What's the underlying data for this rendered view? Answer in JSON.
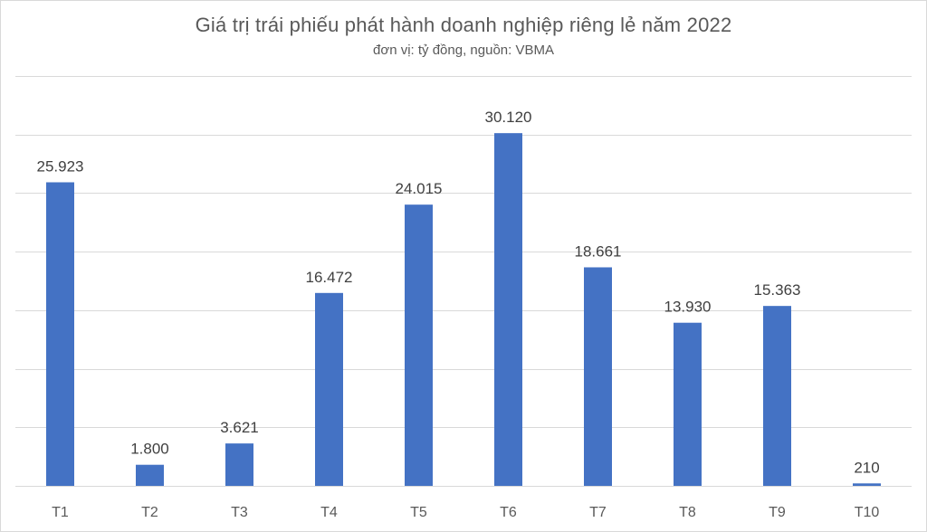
{
  "chart_data": {
    "type": "bar",
    "title": "Giá trị trái phiếu phát hành doanh nghiệp riêng lẻ năm 2022",
    "subtitle": "đơn vị: tỷ đồng, nguồn: VBMA",
    "categories": [
      "T1",
      "T2",
      "T3",
      "T4",
      "T5",
      "T6",
      "T7",
      "T8",
      "T9",
      "T10"
    ],
    "values": [
      25923,
      1800,
      3621,
      16472,
      24015,
      30120,
      18661,
      13930,
      15363,
      210
    ],
    "value_labels": [
      "25.923",
      "1.800",
      "3.621",
      "16.472",
      "24.015",
      "30.120",
      "18.661",
      "13.930",
      "15.363",
      "210"
    ],
    "xlabel": "",
    "ylabel": "",
    "ylim": [
      0,
      35000
    ],
    "y_gridline_step": 5000,
    "grid": true,
    "legend": "none",
    "bar_color": "#4472c4"
  }
}
